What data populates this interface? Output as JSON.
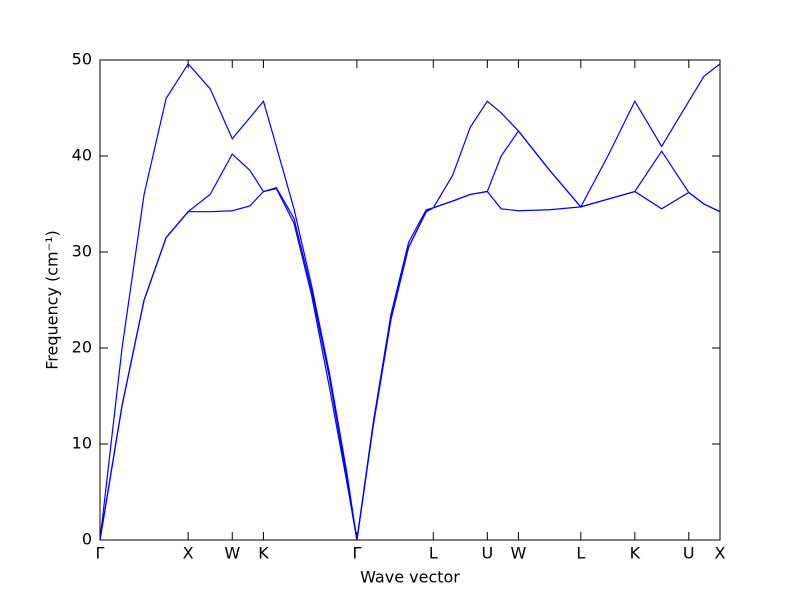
{
  "chart_data": {
    "type": "line",
    "xlabel": "Wave vector",
    "ylabel": "Frequency (cm⁻¹)",
    "xlim": [
      0,
      7.032
    ],
    "ylim": [
      0,
      50
    ],
    "yticks": [
      0,
      10,
      20,
      30,
      40,
      50
    ],
    "xticks": [
      {
        "value": 0,
        "label": "Γ"
      },
      {
        "value": 1.0,
        "label": "X"
      },
      {
        "value": 1.5,
        "label": "W"
      },
      {
        "value": 1.854,
        "label": "K"
      },
      {
        "value": 2.914,
        "label": "Γ"
      },
      {
        "value": 3.78,
        "label": "L"
      },
      {
        "value": 4.393,
        "label": "U"
      },
      {
        "value": 4.746,
        "label": "W"
      },
      {
        "value": 5.453,
        "label": "L"
      },
      {
        "value": 6.066,
        "label": "K"
      },
      {
        "value": 6.678,
        "label": "U"
      },
      {
        "value": 7.032,
        "label": "X"
      }
    ],
    "x": [
      0,
      0.25,
      0.5,
      0.75,
      1.0,
      1.25,
      1.5,
      1.7,
      1.854,
      2.0,
      2.2,
      2.4,
      2.6,
      2.8,
      2.914,
      3.1,
      3.3,
      3.5,
      3.7,
      3.78,
      4.0,
      4.2,
      4.393,
      4.55,
      4.746,
      5.1,
      5.453,
      5.76,
      6.066,
      6.37,
      6.678,
      6.85,
      7.032
    ],
    "series": [
      {
        "color": "#0000ff",
        "values": [
          0,
          14,
          25,
          31.5,
          34.2,
          34.2,
          34.3,
          34.8,
          36.3,
          36.6,
          33,
          25.5,
          16,
          6,
          0,
          12,
          23,
          30.5,
          34.2,
          34.6,
          35.3,
          36,
          36.3,
          34.5,
          34.3,
          34.4,
          34.7,
          35.5,
          36.3,
          34.5,
          36.2,
          35,
          34.2
        ]
      },
      {
        "color": "#0000ff",
        "values": [
          0,
          14,
          25,
          31.5,
          34.2,
          36,
          40.2,
          38.5,
          36.3,
          36.7,
          33.5,
          26,
          17,
          6.5,
          0,
          12,
          23,
          30.5,
          34.2,
          34.6,
          35.3,
          36,
          36.3,
          40,
          42.6,
          38.5,
          34.7,
          35.5,
          36.3,
          40.5,
          36.2,
          35,
          34.2
        ]
      },
      {
        "color": "#0000ff",
        "values": [
          0,
          20,
          36,
          46,
          49.6,
          47,
          41.8,
          44,
          45.7,
          41,
          34.5,
          26.5,
          17.5,
          7,
          0,
          12.3,
          23.5,
          31,
          34.4,
          34.6,
          38,
          43,
          45.7,
          44.5,
          42.6,
          38.5,
          34.7,
          40,
          45.7,
          41,
          45.7,
          48.3,
          49.6
        ]
      }
    ]
  }
}
